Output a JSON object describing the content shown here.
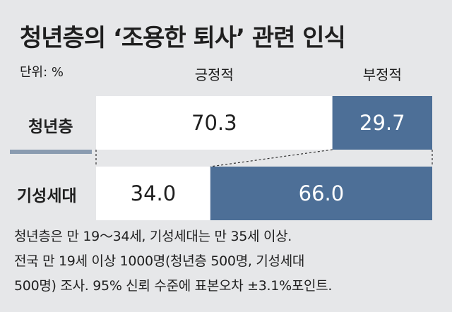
{
  "title": "청년층의 ‘조용한 퇴사’ 관련 인식",
  "unit_label": "단위: %",
  "colors": {
    "positive": "#ffffff",
    "negative": "#4d6f97",
    "background": "#e6e7e9"
  },
  "chart_data": {
    "type": "bar",
    "orientation": "horizontal-stacked-100",
    "title": "청년층의 ‘조용한 퇴사’ 관련 인식",
    "unit": "%",
    "categories": [
      "청년층",
      "기성세대"
    ],
    "series": [
      {
        "name": "긍정적",
        "values": [
          70.3,
          34.0
        ],
        "labels": [
          "70.3",
          "34.0"
        ]
      },
      {
        "name": "부정적",
        "values": [
          29.7,
          66.0
        ],
        "labels": [
          "29.7",
          "66.0"
        ]
      }
    ],
    "xlim": [
      0,
      100
    ],
    "grid": false,
    "legend": "top"
  },
  "notes": [
    "청년층은 만 19～34세, 기성세대는 만 35세 이상.",
    "전국 만 19세 이상 1000명(청년층 500명, 기성세대",
    "500명) 조사. 95% 신뢰 수준에 표본오차 ±3.1%포인트."
  ]
}
